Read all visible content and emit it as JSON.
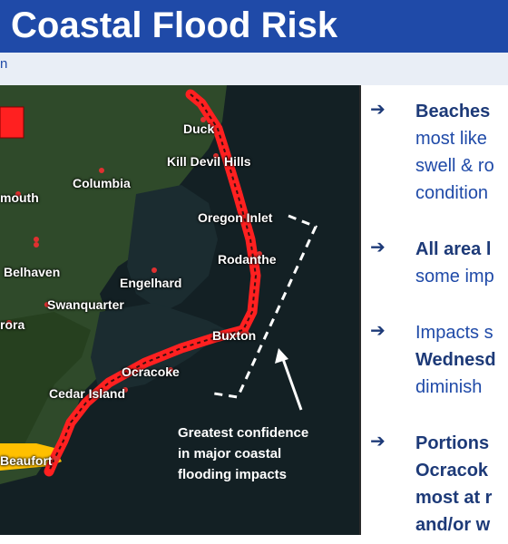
{
  "header": {
    "title": "Coastal Flood Risk"
  },
  "subheader": {
    "text": "n"
  },
  "colors": {
    "header_bg": "#1f4aa8",
    "risk_red": "#ff2020",
    "moderate_orange": "#ffc000"
  },
  "map": {
    "legend_icon": "risk-swatch",
    "labels": [
      {
        "name": "Duck"
      },
      {
        "name": "Kill Devil Hills"
      },
      {
        "name": "Columbia"
      },
      {
        "name": "mouth"
      },
      {
        "name": "Oregon Inlet"
      },
      {
        "name": "Rodanthe"
      },
      {
        "name": "Belhaven"
      },
      {
        "name": "Engelhard"
      },
      {
        "name": "Swanquarter"
      },
      {
        "name": "rora"
      },
      {
        "name": "Buxton"
      },
      {
        "name": "Ocracoke"
      },
      {
        "name": "Cedar Island"
      },
      {
        "name": "Beaufort"
      }
    ],
    "confidence_text": [
      "Greatest confidence",
      "in major coastal",
      "flooding impacts"
    ]
  },
  "bullets": [
    {
      "lines": [
        {
          "text": "Beaches",
          "bold": true
        },
        {
          "text": "most like",
          "bold": false
        },
        {
          "text": "swell & ro",
          "bold": false
        },
        {
          "text": "condition",
          "bold": false
        }
      ]
    },
    {
      "lines": [
        {
          "text": "All area l",
          "bold": true
        },
        {
          "text": "some imp",
          "bold": false
        }
      ]
    },
    {
      "lines": [
        {
          "text": "Impacts s",
          "bold": false
        },
        {
          "text": "Wednesd",
          "bold": true
        },
        {
          "text": "diminish",
          "bold": false
        }
      ]
    },
    {
      "lines": [
        {
          "text": "Portions",
          "bold": true
        },
        {
          "text": "Ocracok",
          "bold": true
        },
        {
          "text": "most at r",
          "bold": true
        },
        {
          "text": "and/or w",
          "bold": true
        }
      ]
    }
  ]
}
